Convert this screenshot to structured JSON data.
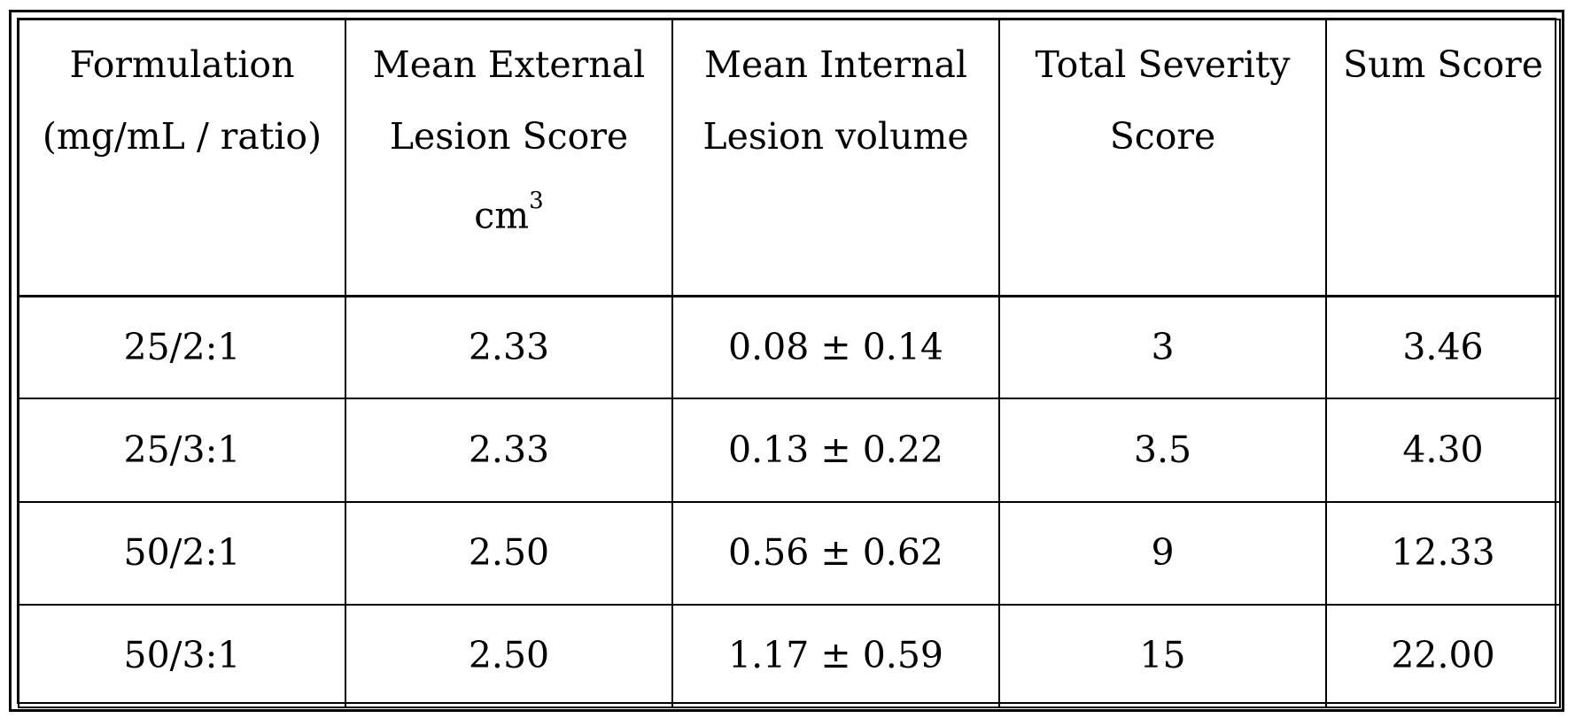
{
  "table": {
    "headers": [
      {
        "lines": [
          "Formulation",
          "(mg/mL / ratio)"
        ]
      },
      {
        "lines": [
          "Mean External",
          "Lesion Score"
        ],
        "unit": "cm",
        "unit_sup": "3"
      },
      {
        "lines": [
          "Mean Internal",
          "Lesion volume"
        ]
      },
      {
        "lines": [
          "Total Severity",
          "Score"
        ]
      },
      {
        "lines": [
          "Sum Score"
        ]
      }
    ],
    "rows": [
      [
        "25/2:1",
        "2.33",
        "0.08 ± 0.14",
        "3",
        "3.46"
      ],
      [
        "25/3:1",
        "2.33",
        "0.13 ± 0.22",
        "3.5",
        "4.30"
      ],
      [
        "50/2:1",
        "2.50",
        "0.56 ± 0.62",
        "9",
        "12.33"
      ],
      [
        "50/3:1",
        "2.50",
        "1.17 ± 0.59",
        "15",
        "22.00"
      ]
    ]
  }
}
